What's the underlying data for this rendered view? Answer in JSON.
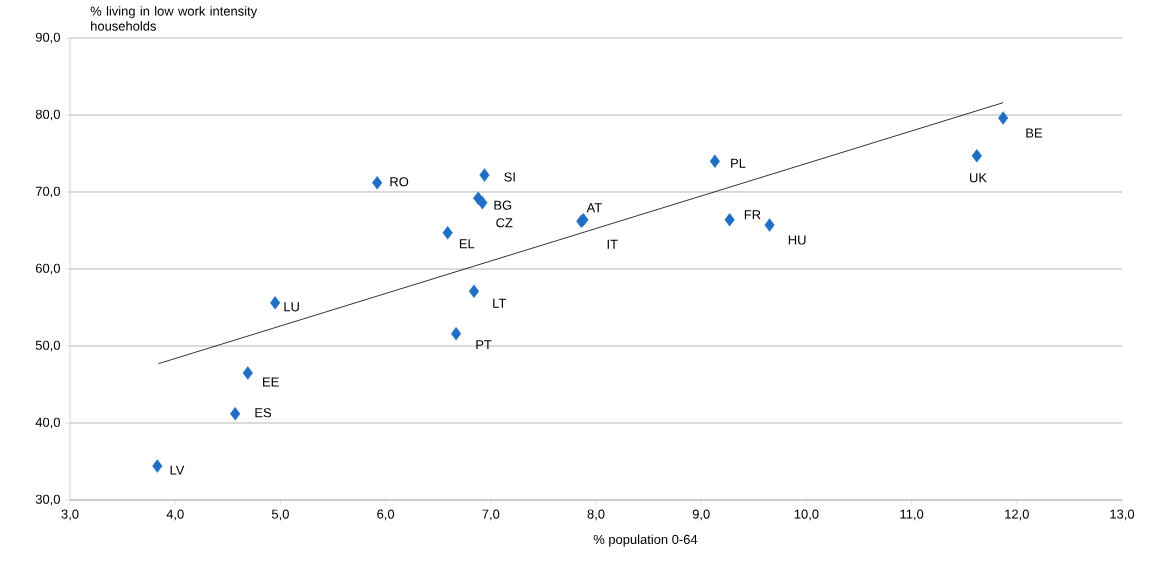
{
  "chart_data": {
    "type": "scatter",
    "xlabel": "% population 0-64",
    "ylabel": "% living in low work intensity households",
    "xlim": [
      3,
      13
    ],
    "ylim": [
      30,
      90
    ],
    "xticks": [
      {
        "value": 3,
        "label": "3,0"
      },
      {
        "value": 4,
        "label": "4,0"
      },
      {
        "value": 5,
        "label": "5,0"
      },
      {
        "value": 6,
        "label": "6,0"
      },
      {
        "value": 7,
        "label": "7,0"
      },
      {
        "value": 8,
        "label": "8,0"
      },
      {
        "value": 9,
        "label": "9,0"
      },
      {
        "value": 10,
        "label": "10,0"
      },
      {
        "value": 11,
        "label": "11,0"
      },
      {
        "value": 12,
        "label": "12,0"
      },
      {
        "value": 13,
        "label": "13,0"
      }
    ],
    "yticks": [
      {
        "value": 30,
        "label": "30,0"
      },
      {
        "value": 40,
        "label": "40,0"
      },
      {
        "value": 50,
        "label": "50,0"
      },
      {
        "value": 60,
        "label": "60,0"
      },
      {
        "value": 70,
        "label": "70,0"
      },
      {
        "value": 80,
        "label": "80,0"
      },
      {
        "value": 90,
        "label": "90,0"
      }
    ],
    "grid": "y",
    "marker": "diamond",
    "series": [
      {
        "color": "#1f6fc5",
        "x": [
          3.83,
          4.57,
          4.69,
          4.95,
          5.92,
          6.59,
          6.67,
          6.84,
          6.88,
          6.92,
          6.94,
          7.88,
          7.86,
          9.13,
          9.27,
          9.65,
          11.62,
          11.87
        ],
        "values": [
          34.4,
          41.2,
          46.5,
          55.6,
          71.2,
          64.7,
          51.6,
          57.1,
          69.2,
          68.6,
          72.2,
          66.4,
          66.2,
          74.0,
          66.4,
          65.7,
          74.7,
          79.6
        ]
      },
      {
        "type": "line",
        "marker": "none",
        "color": "#000000",
        "x": [
          3.84,
          11.87
        ],
        "values": [
          47.7,
          81.6
        ]
      }
    ],
    "annotations": [
      {
        "text": "LV",
        "x": 3.83,
        "y": 34.4
      },
      {
        "text": "ES",
        "x": 4.57,
        "y": 41.2
      },
      {
        "text": "EE",
        "x": 4.69,
        "y": 46.5
      },
      {
        "text": "LU",
        "x": 4.95,
        "y": 55.6
      },
      {
        "text": "RO",
        "x": 5.92,
        "y": 71.2
      },
      {
        "text": "EL",
        "x": 6.59,
        "y": 64.7
      },
      {
        "text": "PT",
        "x": 6.67,
        "y": 51.6
      },
      {
        "text": "LT",
        "x": 6.84,
        "y": 57.1
      },
      {
        "text": "BG",
        "x": 6.88,
        "y": 69.2
      },
      {
        "text": "CZ",
        "x": 6.92,
        "y": 68.6
      },
      {
        "text": "SI",
        "x": 6.94,
        "y": 72.2
      },
      {
        "text": "AT",
        "x": 7.88,
        "y": 66.4
      },
      {
        "text": "IT",
        "x": 7.86,
        "y": 66.2
      },
      {
        "text": "PL",
        "x": 9.13,
        "y": 74.0
      },
      {
        "text": "FR",
        "x": 9.27,
        "y": 66.4
      },
      {
        "text": "HU",
        "x": 9.65,
        "y": 65.7
      },
      {
        "text": "UK",
        "x": 11.62,
        "y": 74.7
      },
      {
        "text": "BE",
        "x": 11.87,
        "y": 79.6
      }
    ]
  }
}
